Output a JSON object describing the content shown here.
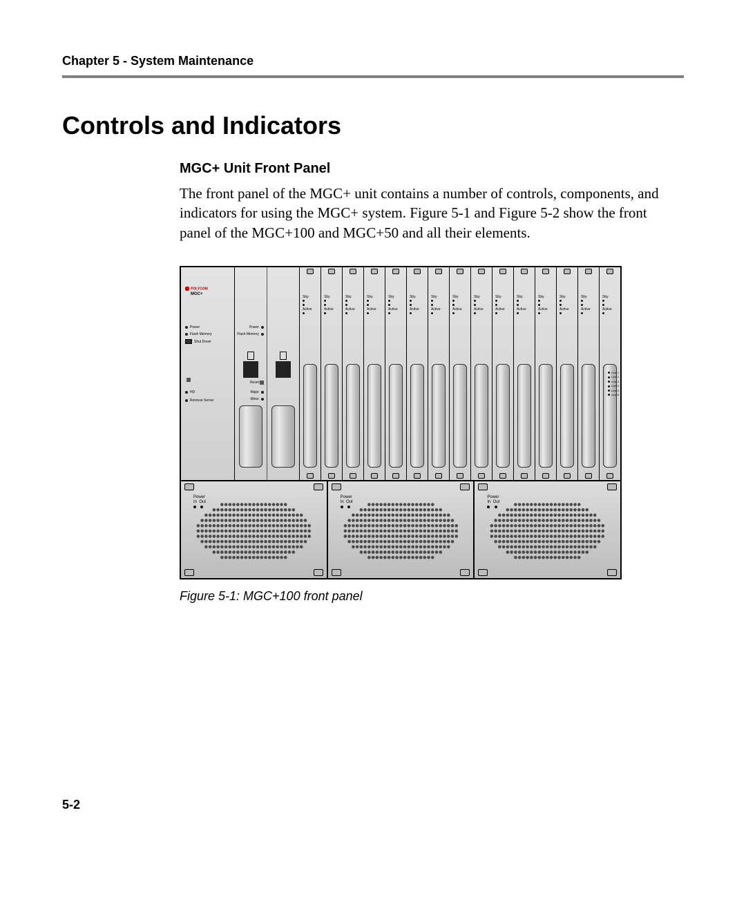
{
  "header": {
    "chapter_line": "Chapter 5 - System Maintenance"
  },
  "title": "Controls and Indicators",
  "subhead": "MGC+ Unit Front Panel",
  "paragraph": "The front panel of the MGC+ unit contains a number of controls, components, and indicators for using the MGC+ system. Figure 5-1 and Figure 5-2 show the front panel of the MGC+100 and MGC+50 and all their elements.",
  "figure_caption": "Figure 5-1: MGC+100 front panel",
  "page_number": "5-2",
  "panel": {
    "brand": "POLYCOM",
    "model": "MGC+",
    "ctrl_labels": {
      "power": "Power",
      "flash": "Flash Memory",
      "shutdown": "Shut Down",
      "hd": "HD",
      "remove": "Remove Server"
    },
    "cpu_labels": {
      "power": "Power",
      "flash": "Flash Memory",
      "reset": "Reset",
      "major": "Major",
      "minor": "Minor"
    },
    "card_led_top": "Sby",
    "card_led_bot": "Active",
    "rlabels": [
      "Line 1",
      "Line 2",
      "Line 3",
      "Line 4",
      "Line 5",
      "Line 6"
    ],
    "psu": {
      "title": "Power",
      "in": "In",
      "out": "Out"
    }
  },
  "style": {
    "rule_color": "#808080",
    "text_color": "#000000",
    "bg": "#ffffff",
    "chassis_bg_top": "#d9d9d9",
    "chassis_bg_bot": "#c7c7c7"
  }
}
